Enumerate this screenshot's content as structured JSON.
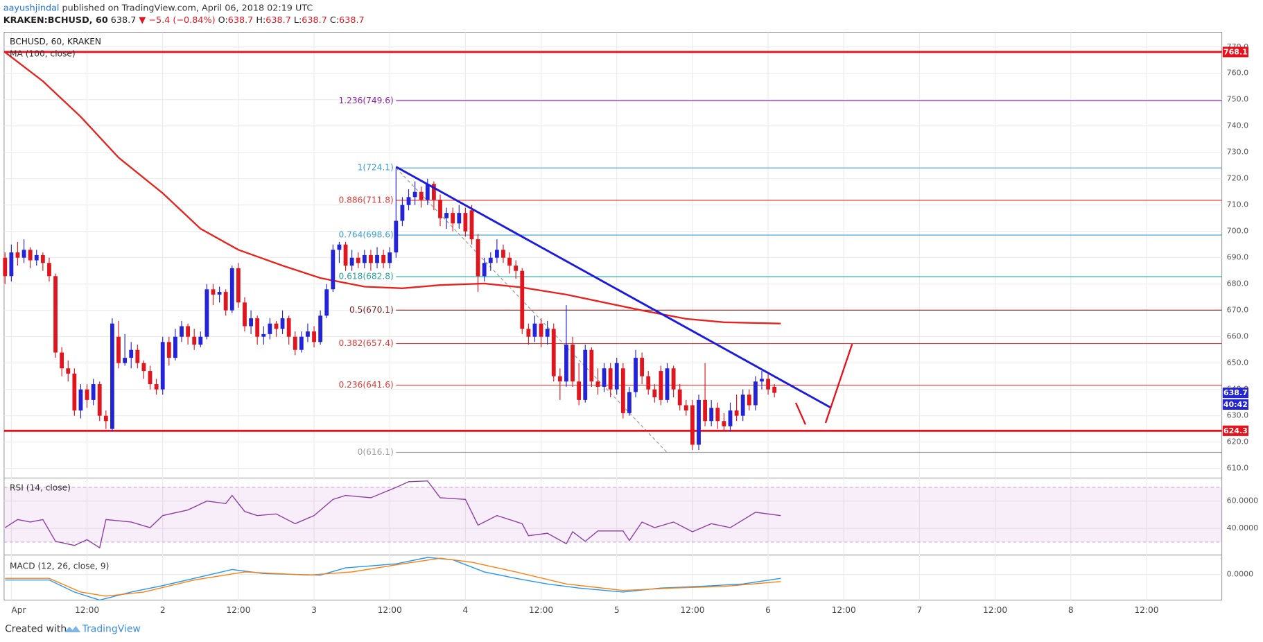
{
  "header": {
    "author": "aayushjindal",
    "published": " published on TradingView.com, April 06, 2018 02:19 UTC",
    "symbol": "KRAKEN:BCHUSD, 60",
    "last": "638.7",
    "change": "▼ −5.4 (−0.84%)",
    "ohlc": [
      {
        "k": "O:",
        "v": "638.7"
      },
      {
        "k": "H:",
        "v": "638.7"
      },
      {
        "k": "L:",
        "v": "638.7"
      },
      {
        "k": "C:",
        "v": "638.7"
      }
    ]
  },
  "footer": {
    "text": "Created with",
    "brand": "TradingView"
  },
  "chart_data": {
    "type": "candlestick",
    "title": "BCHUSD, 60, KRAKEN",
    "xlim": [
      -1.15,
      191.95
    ],
    "xticks": [
      {
        "value": 0,
        "label": "Apr"
      },
      {
        "value": 12,
        "label": "12:00"
      },
      {
        "value": 24,
        "label": "2"
      },
      {
        "value": 36,
        "label": "12:00"
      },
      {
        "value": 48,
        "label": "3"
      },
      {
        "value": 60,
        "label": "12:00"
      },
      {
        "value": 72,
        "label": "4"
      },
      {
        "value": 84,
        "label": "12:00"
      },
      {
        "value": 96,
        "label": "5"
      },
      {
        "value": 108,
        "label": "12:00"
      },
      {
        "value": 120,
        "label": "6"
      },
      {
        "value": 132,
        "label": "12:00"
      },
      {
        "value": 144,
        "label": "7"
      },
      {
        "value": 156,
        "label": "12:00"
      },
      {
        "value": 168,
        "label": "8"
      },
      {
        "value": 180,
        "label": "12:00"
      }
    ],
    "ylim": [
      606.8,
      775.6
    ],
    "yticks": [
      {
        "value": 610,
        "label": "610.0"
      },
      {
        "value": 620,
        "label": "620.0"
      },
      {
        "value": 630,
        "label": "630.0"
      },
      {
        "value": 640,
        "label": "640.0"
      },
      {
        "value": 650,
        "label": "650.0"
      },
      {
        "value": 660,
        "label": "660.0"
      },
      {
        "value": 670,
        "label": "670.0"
      },
      {
        "value": 680,
        "label": "680.0"
      },
      {
        "value": 690,
        "label": "690.0"
      },
      {
        "value": 700,
        "label": "700.0"
      },
      {
        "value": 710,
        "label": "710.0"
      },
      {
        "value": 720,
        "label": "720.0"
      },
      {
        "value": 730,
        "label": "730.0"
      },
      {
        "value": 740,
        "label": "740.0"
      },
      {
        "value": 750,
        "label": "750.0"
      },
      {
        "value": 760,
        "label": "760.0"
      },
      {
        "value": 770,
        "label": "770.0"
      }
    ],
    "grid": true,
    "candles": {
      "up_color": "#2323d8",
      "down_color": "#e0161e",
      "x": [
        -1,
        0,
        1,
        2,
        3,
        4,
        5,
        6,
        7,
        8,
        9,
        10,
        11,
        12,
        13,
        14,
        15,
        16,
        17,
        18,
        19,
        20,
        21,
        22,
        23,
        24,
        25,
        26,
        27,
        28,
        29,
        30,
        31,
        32,
        33,
        34,
        35,
        36,
        37,
        38,
        39,
        40,
        41,
        42,
        43,
        44,
        45,
        46,
        47,
        48,
        49,
        50,
        51,
        52,
        53,
        54,
        55,
        56,
        57,
        58,
        59,
        60,
        61,
        62,
        63,
        64,
        65,
        66,
        67,
        68,
        69,
        70,
        71,
        72,
        73,
        74,
        75,
        76,
        77,
        78,
        79,
        80,
        81,
        82,
        83,
        84,
        85,
        86,
        87,
        88,
        89,
        90,
        91,
        92,
        93,
        94,
        95,
        96,
        97,
        98,
        99,
        100,
        101,
        102,
        103,
        104,
        105,
        106,
        107,
        108,
        109,
        110,
        111,
        112,
        113,
        114,
        115,
        116,
        117,
        118,
        119,
        120,
        121
      ],
      "open": [
        690,
        683,
        692,
        690,
        693,
        689,
        691,
        688,
        683,
        654,
        648,
        646,
        632,
        640,
        636,
        642,
        630,
        625,
        660,
        650,
        652,
        655,
        650,
        647,
        642,
        640,
        658,
        652,
        660,
        664,
        660,
        657,
        660,
        678,
        676,
        677,
        670,
        686,
        673,
        664,
        667,
        660,
        661,
        665,
        663,
        667,
        660,
        655,
        660,
        662,
        658,
        668,
        678,
        693,
        695,
        687,
        690,
        688,
        691,
        688,
        691,
        688,
        692,
        704,
        710,
        713,
        715,
        712,
        718,
        712,
        705,
        707,
        703,
        707,
        708,
        697,
        683,
        688,
        690,
        693,
        690,
        687,
        685,
        663,
        660,
        665,
        660,
        663,
        645,
        643,
        657,
        643,
        636,
        655,
        643,
        641,
        648,
        640,
        648,
        631,
        639,
        652,
        645,
        640,
        647,
        636,
        648,
        640,
        634,
        634,
        619,
        636,
        628,
        633,
        628,
        626,
        632,
        630,
        638,
        634,
        643,
        644,
        641
      ],
      "high": [
        692,
        695,
        696,
        697,
        694,
        693,
        692,
        690,
        684,
        656,
        651,
        648,
        642,
        642,
        644,
        643,
        632,
        667,
        666,
        661,
        658,
        657,
        651,
        649,
        644,
        660,
        660,
        663,
        666,
        665,
        663,
        662,
        680,
        680,
        679,
        678,
        687,
        688,
        675,
        670,
        668,
        664,
        667,
        666,
        670,
        668,
        662,
        662,
        665,
        664,
        670,
        680,
        695,
        696,
        696,
        693,
        692,
        693,
        693,
        694,
        693,
        694,
        724,
        713,
        716,
        719,
        717,
        720,
        719,
        714,
        709,
        709,
        710,
        709,
        710,
        699,
        690,
        692,
        697,
        695,
        692,
        689,
        686,
        665,
        668,
        667,
        666,
        665,
        648,
        672,
        660,
        650,
        657,
        656,
        648,
        650,
        650,
        652,
        650,
        641,
        655,
        654,
        647,
        642,
        649,
        650,
        649,
        642,
        636,
        636,
        638,
        650,
        636,
        635,
        631,
        635,
        638,
        640,
        640,
        645,
        647,
        646,
        642
      ],
      "low": [
        680,
        681,
        687,
        688,
        686,
        687,
        685,
        681,
        652,
        645,
        643,
        630,
        629,
        633,
        634,
        628,
        625,
        624,
        648,
        649,
        648,
        648,
        644,
        640,
        638,
        638,
        649,
        651,
        658,
        657,
        655,
        656,
        659,
        672,
        673,
        668,
        669,
        671,
        662,
        661,
        657,
        657,
        659,
        660,
        661,
        657,
        653,
        654,
        658,
        656,
        657,
        667,
        677,
        688,
        685,
        685,
        686,
        686,
        685,
        686,
        686,
        686,
        690,
        702,
        708,
        710,
        709,
        710,
        708,
        702,
        701,
        700,
        701,
        698,
        695,
        677,
        681,
        685,
        688,
        688,
        684,
        682,
        661,
        657,
        658,
        656,
        657,
        643,
        636,
        641,
        641,
        634,
        635,
        641,
        638,
        639,
        637,
        638,
        629,
        630,
        637,
        642,
        638,
        635,
        634,
        635,
        637,
        632,
        630,
        617,
        617,
        626,
        626,
        625,
        624,
        624,
        628,
        628,
        632,
        632,
        640,
        638,
        637
      ],
      "close": [
        683,
        692,
        690,
        693,
        689,
        691,
        688,
        683,
        654,
        648,
        646,
        632,
        640,
        636,
        642,
        630,
        628,
        665,
        650,
        652,
        655,
        650,
        647,
        642,
        640,
        658,
        652,
        660,
        664,
        660,
        657,
        660,
        678,
        676,
        677,
        670,
        686,
        673,
        664,
        667,
        660,
        661,
        665,
        663,
        667,
        660,
        655,
        660,
        662,
        658,
        668,
        678,
        693,
        695,
        687,
        690,
        688,
        691,
        688,
        691,
        688,
        692,
        704,
        710,
        713,
        715,
        712,
        718,
        712,
        705,
        707,
        703,
        707,
        700,
        697,
        683,
        688,
        690,
        693,
        690,
        687,
        685,
        663,
        660,
        665,
        660,
        663,
        645,
        643,
        657,
        643,
        636,
        655,
        643,
        641,
        648,
        640,
        650,
        631,
        639,
        652,
        645,
        640,
        637,
        636,
        648,
        640,
        634,
        632,
        619,
        636,
        628,
        633,
        628,
        626,
        632,
        630,
        638,
        634,
        643,
        644,
        640,
        638.7
      ]
    },
    "ma": {
      "name": "MA (100, close)",
      "color": "#e8211d",
      "x": [
        -1,
        5,
        11,
        17,
        24,
        30,
        36,
        43,
        49,
        56,
        62,
        68,
        75,
        81,
        88,
        94,
        100,
        107,
        113,
        122
      ],
      "values": [
        768,
        757,
        743.5,
        728,
        714.5,
        701,
        693,
        687,
        682.3,
        679,
        678.4,
        679.6,
        680.2,
        678.7,
        676,
        673,
        670,
        666.8,
        665.5,
        665
      ]
    },
    "hlines": [
      {
        "value": 768.1,
        "color": "#e8101a"
      },
      {
        "value": 624.3,
        "color": "#e8101a"
      }
    ],
    "fib": {
      "start_x": 61,
      "levels": [
        {
          "label": "1.236(749.6)",
          "value": 749.6,
          "color": "#8e24aa"
        },
        {
          "label": "1(724.1)",
          "value": 724.1,
          "color": "#3a9fcf"
        },
        {
          "label": "0.886(711.8)",
          "value": 711.8,
          "color": "#e53935"
        },
        {
          "label": "0.764(698.6)",
          "value": 698.6,
          "color": "#3a9fcf"
        },
        {
          "label": "0.618(682.8)",
          "value": 682.8,
          "color": "#26a69a"
        },
        {
          "label": "0.5(670.1)",
          "value": 670.1,
          "color": "#7b1f1f"
        },
        {
          "label": "0.382(657.4)",
          "value": 657.4,
          "color": "#e53935"
        },
        {
          "label": "0.236(641.6)",
          "value": 641.6,
          "color": "#e53935"
        },
        {
          "label": "0(616.1)",
          "value": 616.1,
          "color": "#9e9e9e"
        }
      ]
    },
    "trendline": {
      "color": "#1a1ae0",
      "x": [
        61,
        130
      ],
      "values": [
        724.5,
        633
      ]
    },
    "fib_base": {
      "color": "#999999",
      "x": [
        61,
        104
      ],
      "values": [
        724.1,
        616
      ]
    },
    "price_tags": [
      {
        "value": 768.1,
        "color": "#e8101a"
      },
      {
        "value": 638.7,
        "color": "#2323d8"
      },
      {
        "value": 624.3,
        "color": "#e8101a"
      }
    ],
    "countdown": "40:42",
    "rsi": {
      "name": "RSI (14, close)",
      "color": "#8e3fa6",
      "ylim": [
        21.2,
        75.9
      ],
      "band": [
        30,
        70
      ],
      "yticks": [
        {
          "value": 40,
          "label": "40.0000"
        },
        {
          "value": 60,
          "label": "60.0000"
        }
      ],
      "x": [
        -1,
        1,
        3,
        5,
        7,
        10,
        12,
        14,
        15,
        19,
        22,
        24,
        28,
        31,
        34,
        35,
        37,
        39,
        42,
        45,
        48,
        51,
        53,
        57,
        61,
        63,
        66,
        68,
        72,
        74,
        77,
        81,
        82,
        85,
        88,
        89,
        91,
        93,
        97,
        98,
        100,
        102,
        105,
        108,
        111,
        114,
        118,
        122
      ],
      "values": [
        40.6,
        46.5,
        44.7,
        46.5,
        30.6,
        27.6,
        31.8,
        25.9,
        46.5,
        44.7,
        40.6,
        49.4,
        53.5,
        60,
        58.2,
        64.1,
        52.4,
        49.4,
        50.6,
        43.5,
        49.4,
        61.2,
        64.1,
        62.4,
        70,
        74.1,
        74.7,
        62.4,
        61.2,
        42.4,
        49.4,
        43.5,
        34.7,
        36.5,
        28.8,
        37.6,
        30.6,
        38.2,
        38.2,
        31.2,
        44.7,
        40.6,
        44.7,
        37.6,
        43.5,
        40.6,
        51.8,
        49.4
      ]
    },
    "macd": {
      "name": "MACD (12, 26, close, 9)",
      "ylim": [
        -16,
        11.5
      ],
      "yticks": [
        {
          "value": 0,
          "label": "0.0000"
        }
      ],
      "series": [
        {
          "color": "#2196f3",
          "x": [
            -1,
            6,
            10,
            14,
            19,
            24,
            29,
            35,
            40,
            49,
            53,
            61,
            66,
            70,
            75,
            80,
            85,
            90,
            97,
            103,
            109,
            116,
            122
          ],
          "values": [
            -3.5,
            -3.5,
            -11,
            -16,
            -11,
            -7,
            -2.5,
            3,
            0.5,
            -0.5,
            4,
            6.5,
            10.5,
            9,
            1.5,
            -2.5,
            -6,
            -8.5,
            -11,
            -8.5,
            -7.5,
            -6,
            -2.5
          ]
        },
        {
          "color": "#ff7f0e",
          "x": [
            -1,
            6,
            11,
            15,
            21,
            29,
            37,
            47,
            54,
            62,
            68,
            73,
            80,
            88,
            97,
            105,
            113,
            122
          ],
          "values": [
            -2.5,
            -2.5,
            -11,
            -13.5,
            -11,
            -3.5,
            1.5,
            -0.5,
            1.5,
            6.5,
            10,
            7.5,
            1.5,
            -6,
            -10,
            -8.5,
            -7.5,
            -4.5
          ]
        }
      ]
    }
  }
}
